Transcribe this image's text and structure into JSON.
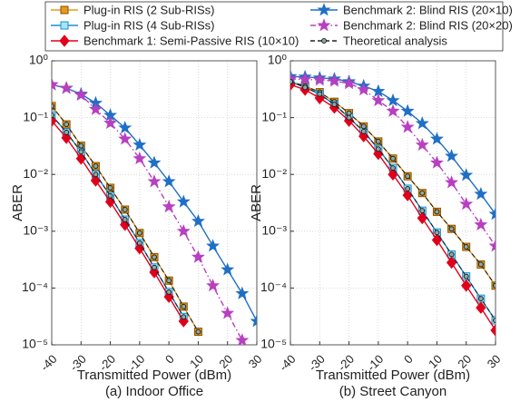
{
  "chart_data": [
    {
      "type": "line",
      "caption": "(a) Indoor Office",
      "x_label": "Transmitted Power (dBm)",
      "y_label": "ABER",
      "log_y": true,
      "grid": true,
      "x": [
        -40,
        -35,
        -30,
        -25,
        -20,
        -15,
        -10,
        -5,
        0,
        5,
        10,
        15,
        20,
        25,
        30
      ],
      "xlim": [
        -40,
        30
      ],
      "xticks": [
        -40,
        -30,
        -20,
        -10,
        0,
        10,
        20,
        30
      ],
      "ylim": [
        1e-05,
        1
      ],
      "yticks": [
        {
          "value": 1e-05,
          "label": "10⁻⁵"
        },
        {
          "value": 0.0001,
          "label": "10⁻⁴"
        },
        {
          "value": 0.001,
          "label": "10⁻³"
        },
        {
          "value": 0.01,
          "label": "10⁻²"
        },
        {
          "value": 0.1,
          "label": "10⁻¹"
        },
        {
          "value": 1,
          "label": "10⁰"
        }
      ],
      "series": [
        {
          "name": "Plug-in RIS (2 Sub-RISs)",
          "color": "#e69b1e",
          "marker": "square",
          "line_style": "solid",
          "values": [
            0.16,
            0.076,
            0.032,
            0.014,
            0.0058,
            0.0024,
            0.00093,
            0.00035,
            0.000135,
            4.7e-05,
            1.7e-05,
            null,
            null,
            null,
            null
          ]
        },
        {
          "name": "Plug-in RIS (4 Sub-RISs)",
          "color": "#1a8fd0",
          "marker": "square",
          "line_style": "solid",
          "values": [
            0.11,
            0.055,
            0.025,
            0.01,
            0.0042,
            0.0016,
            0.00062,
            0.00023,
            8.5e-05,
            3.1e-05,
            null,
            null,
            null,
            null,
            null
          ]
        },
        {
          "name": "Benchmark 1: Semi-Passive RIS (10×10)",
          "color": "#e0001b",
          "marker": "diamond",
          "line_style": "solid",
          "values": [
            0.088,
            0.044,
            0.019,
            0.0078,
            0.0033,
            0.0013,
            0.0005,
            0.00019,
            7e-05,
            2.6e-05,
            null,
            null,
            null,
            null,
            null
          ]
        },
        {
          "name": "Benchmark 2: Blind RIS (20×10)",
          "color": "#1f6fc5",
          "marker": "star",
          "line_style": "solid",
          "values": [
            0.38,
            0.33,
            0.26,
            0.18,
            0.11,
            0.066,
            0.033,
            0.016,
            0.0075,
            0.0033,
            0.0015,
            0.00055,
            0.00021,
            8e-05,
            2.6e-05
          ]
        },
        {
          "name": "Benchmark 2: Blind RIS (20×20)",
          "color": "#b83fc0",
          "marker": "star",
          "line_style": "dashdot",
          "values": [
            0.38,
            0.33,
            0.25,
            0.14,
            0.08,
            0.042,
            0.019,
            0.0075,
            0.0027,
            0.001,
            0.00035,
            0.00011,
            3.6e-05,
            1.2e-05,
            null
          ]
        },
        {
          "name": "Theoretical analysis",
          "color": "#222222",
          "marker": "circle",
          "line_style": "dashed",
          "values": [
            0.16,
            0.076,
            0.032,
            0.014,
            0.0058,
            0.0024,
            0.00093,
            0.00035,
            0.000135,
            4.7e-05,
            1.7e-05,
            null,
            null,
            null,
            null
          ]
        },
        {
          "name": "Theoretical analysis",
          "color": "#222222",
          "marker": "circle",
          "line_style": "dashed",
          "values": [
            0.11,
            0.055,
            0.025,
            0.01,
            0.0042,
            0.0016,
            0.00062,
            0.00023,
            8.5e-05,
            3.1e-05,
            null,
            null,
            null,
            null,
            null
          ]
        }
      ]
    },
    {
      "type": "line",
      "caption": "(b) Street Canyon",
      "x_label": "Transmitted Power (dBm)",
      "y_label": "ABER",
      "log_y": true,
      "grid": true,
      "x": [
        -40,
        -35,
        -30,
        -25,
        -20,
        -15,
        -10,
        -5,
        0,
        5,
        10,
        15,
        20,
        25,
        30
      ],
      "xlim": [
        -40,
        30
      ],
      "xticks": [
        -40,
        -30,
        -20,
        -10,
        0,
        10,
        20,
        30
      ],
      "ylim": [
        1e-05,
        1
      ],
      "yticks": [
        {
          "value": 1e-05,
          "label": "10⁻⁵"
        },
        {
          "value": 0.0001,
          "label": "10⁻⁴"
        },
        {
          "value": 0.001,
          "label": "10⁻³"
        },
        {
          "value": 0.01,
          "label": "10⁻²"
        },
        {
          "value": 0.1,
          "label": "10⁻¹"
        },
        {
          "value": 1,
          "label": "10⁰"
        }
      ],
      "series": [
        {
          "name": "Plug-in RIS (2 Sub-RISs)",
          "color": "#e69b1e",
          "marker": "square",
          "line_style": "solid",
          "values": [
            0.43,
            0.36,
            0.28,
            0.19,
            0.12,
            0.07,
            0.038,
            0.019,
            0.0093,
            0.0047,
            0.0022,
            0.0011,
            0.00053,
            0.00026,
            0.00011
          ]
        },
        {
          "name": "Plug-in RIS (4 Sub-RISs)",
          "color": "#1a8fd0",
          "marker": "square",
          "line_style": "solid",
          "values": [
            0.43,
            0.34,
            0.26,
            0.17,
            0.1,
            0.057,
            0.028,
            0.013,
            0.0056,
            0.0023,
            0.00095,
            0.00039,
            0.00016,
            6.5e-05,
            2.7e-05
          ]
        },
        {
          "name": "Benchmark 1: Semi-Passive RIS (10×10)",
          "color": "#e0001b",
          "marker": "diamond",
          "line_style": "solid",
          "values": [
            0.38,
            0.31,
            0.22,
            0.15,
            0.088,
            0.047,
            0.023,
            0.01,
            0.0043,
            0.0017,
            0.0007,
            0.00028,
            0.00011,
            4.5e-05,
            1.8e-05
          ]
        },
        {
          "name": "Benchmark 2: Blind RIS (20×10)",
          "color": "#1f6fc5",
          "marker": "star",
          "line_style": "solid",
          "values": [
            0.53,
            0.52,
            0.5,
            0.48,
            0.43,
            0.36,
            0.29,
            0.2,
            0.13,
            0.079,
            0.042,
            0.021,
            0.0097,
            0.0045,
            0.002
          ]
        },
        {
          "name": "Benchmark 2: Blind RIS (20×20)",
          "color": "#b83fc0",
          "marker": "star",
          "line_style": "dashdot",
          "values": [
            0.48,
            0.47,
            0.46,
            0.44,
            0.4,
            0.31,
            0.2,
            0.13,
            0.068,
            0.033,
            0.016,
            0.0072,
            0.003,
            0.0013,
            0.00055
          ]
        },
        {
          "name": "Theoretical analysis",
          "color": "#222222",
          "marker": "circle",
          "line_style": "dashed",
          "values": [
            0.43,
            0.36,
            0.28,
            0.19,
            0.12,
            0.07,
            0.038,
            0.019,
            0.0093,
            0.0047,
            0.0022,
            0.0011,
            0.00053,
            0.00026,
            0.00011
          ]
        },
        {
          "name": "Theoretical analysis",
          "color": "#222222",
          "marker": "circle",
          "line_style": "dashed",
          "values": [
            0.43,
            0.34,
            0.26,
            0.17,
            0.1,
            0.057,
            0.028,
            0.013,
            0.0056,
            0.0023,
            0.00095,
            0.00039,
            0.00016,
            6.5e-05,
            2.7e-05
          ]
        }
      ]
    }
  ]
}
